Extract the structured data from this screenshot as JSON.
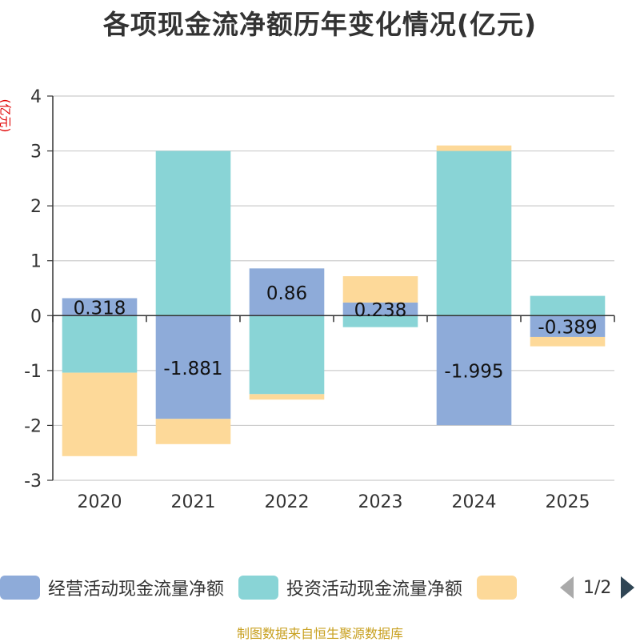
{
  "title": "各项现金流净额历年变化情况(亿元)",
  "chart_data": {
    "type": "bar",
    "stacked": true,
    "title": "各项现金流净额历年变化情况(亿元)",
    "ylabel": "(亿元)",
    "ylim": [
      -3,
      4
    ],
    "yticks": [
      4,
      3,
      2,
      1,
      0,
      -1,
      -2,
      -3
    ],
    "categories": [
      "2020",
      "2021",
      "2022",
      "2023",
      "2024",
      "2025"
    ],
    "series": [
      {
        "name": "经营活动现金流量净额",
        "color": "#8eabd9",
        "values": [
          0.318,
          -1.881,
          0.86,
          0.238,
          -1.995,
          -0.389
        ]
      },
      {
        "name": "投资活动现金流量净额",
        "color": "#89d4d6",
        "values": [
          -1.04,
          3.0,
          -1.43,
          -0.21,
          3.0,
          0.36
        ]
      },
      {
        "name": "",
        "color": "#fdd999",
        "values": [
          -1.52,
          -0.46,
          -0.1,
          0.48,
          0.1,
          -0.17
        ]
      }
    ],
    "data_labels": [
      "0.318",
      "-1.881",
      "0.86",
      "0.238",
      "-1.995",
      "-0.389"
    ]
  },
  "legend": {
    "items": [
      "经营活动现金流量净额",
      "投资活动现金流量净额",
      ""
    ],
    "page": "1/2"
  },
  "source": "制图数据来自恒生聚源数据库"
}
